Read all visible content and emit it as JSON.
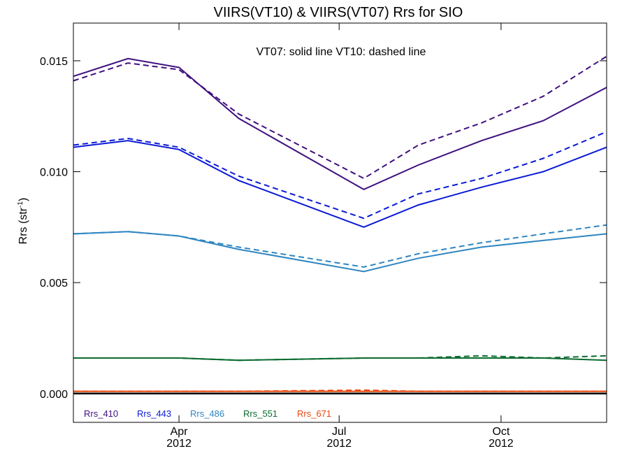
{
  "chart_data": {
    "type": "line",
    "title": "VIIRS(VT10) & VIIRS(VT07)  Rrs for SIO",
    "annotation": "VT07: solid line   VT10: dashed line",
    "ylabel": "Rrs (str",
    "ylabel_sup": "-1",
    "ylabel_close": ")",
    "ylim": [
      -0.0013,
      0.0167
    ],
    "y_ticks": [
      "0.000",
      "0.005",
      "0.010",
      "0.015"
    ],
    "x_range": [
      "2012-02-01",
      "2012-11-30"
    ],
    "x_ticks": [
      {
        "date": "2012-04-01",
        "month": "Apr",
        "year": "2012"
      },
      {
        "date": "2012-07-01",
        "month": "Jul",
        "year": "2012"
      },
      {
        "date": "2012-10-01",
        "month": "Oct",
        "year": "2012"
      }
    ],
    "x": [
      "2012-02-01",
      "2012-03-03",
      "2012-04-01",
      "2012-05-05",
      "2012-07-15",
      "2012-08-15",
      "2012-09-20",
      "2012-10-25",
      "2012-11-30"
    ],
    "legend_position": "bottom-left",
    "baseline": 0.0,
    "series": [
      {
        "name": "Rrs_410",
        "color": "#3f0f80",
        "solid": [
          0.0143,
          0.0151,
          0.0147,
          0.0124,
          0.0092,
          0.0103,
          0.0114,
          0.0123,
          0.0138
        ],
        "dashed": [
          0.0141,
          0.0149,
          0.0146,
          0.0126,
          0.0097,
          0.0112,
          0.0122,
          0.0134,
          0.0152
        ]
      },
      {
        "name": "Rrs_443",
        "color": "#0a1ad6",
        "solid": [
          0.0111,
          0.0114,
          0.011,
          0.0096,
          0.0075,
          0.0085,
          0.0093,
          0.01,
          0.0111
        ],
        "dashed": [
          0.0112,
          0.0115,
          0.0111,
          0.0098,
          0.0079,
          0.009,
          0.0097,
          0.0106,
          0.0118
        ]
      },
      {
        "name": "Rrs_486",
        "color": "#2e86c1",
        "solid": [
          0.0072,
          0.0073,
          0.0071,
          0.0065,
          0.0055,
          0.0061,
          0.0066,
          0.0069,
          0.0072
        ],
        "dashed": [
          0.0072,
          0.0073,
          0.0071,
          0.0066,
          0.0057,
          0.0063,
          0.0068,
          0.0072,
          0.0076
        ]
      },
      {
        "name": "Rrs_551",
        "color": "#0a6b2e",
        "solid": [
          0.0016,
          0.0016,
          0.0016,
          0.0015,
          0.0016,
          0.0016,
          0.0016,
          0.0016,
          0.0015
        ],
        "dashed": [
          0.0016,
          0.0016,
          0.0016,
          0.0015,
          0.0016,
          0.0016,
          0.0017,
          0.0016,
          0.0017
        ]
      },
      {
        "name": "Rrs_671",
        "color": "#e8470c",
        "solid": [
          0.0001,
          0.0001,
          0.0001,
          0.0001,
          0.0001,
          0.0001,
          0.0001,
          0.0001,
          0.0001
        ],
        "dashed": [
          0.0001,
          0.0001,
          0.0001,
          0.0001,
          0.00015,
          0.0001,
          0.0001,
          0.0001,
          0.0001
        ]
      }
    ]
  }
}
